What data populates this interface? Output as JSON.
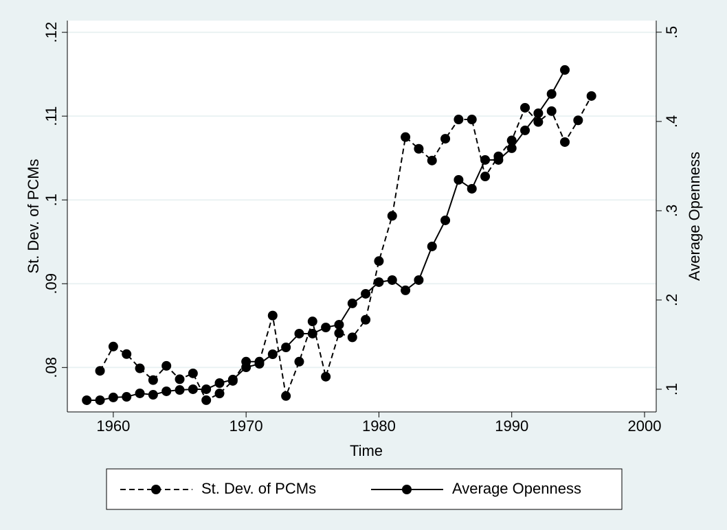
{
  "chart_data": {
    "type": "line",
    "x": [
      1958,
      1959,
      1960,
      1961,
      1962,
      1963,
      1964,
      1965,
      1966,
      1967,
      1968,
      1969,
      1970,
      1971,
      1972,
      1973,
      1974,
      1975,
      1976,
      1977,
      1978,
      1979,
      1980,
      1981,
      1982,
      1983,
      1984,
      1985,
      1986,
      1987,
      1988,
      1989,
      1990,
      1991,
      1992,
      1993,
      1994,
      1995,
      1996
    ],
    "series": [
      {
        "name": "St. Dev. of PCMs",
        "color": "#000000",
        "dash": true,
        "values": [
          null,
          0.0796,
          0.0825,
          0.0816,
          0.0799,
          0.0785,
          0.0802,
          0.0786,
          0.0793,
          0.0761,
          0.0769,
          0.0784,
          0.0807,
          0.0807,
          0.0862,
          0.0766,
          0.0807,
          0.0855,
          0.0789,
          0.0841,
          0.0836,
          0.0857,
          0.0927,
          0.0981,
          0.1075,
          0.1061,
          0.1047,
          0.1073,
          0.1096,
          0.1096,
          0.1028,
          0.1052,
          0.1071,
          0.111,
          0.1093,
          0.1106,
          0.1069,
          0.1095,
          0.1124
        ]
      },
      {
        "name": "Average Openness",
        "color": "#000000",
        "dash": false,
        "axis": "y2",
        "values": [
          0.0877,
          0.0877,
          0.0908,
          0.0915,
          0.0954,
          0.0938,
          0.0977,
          0.0992,
          0.1,
          0.1,
          0.1069,
          0.1108,
          0.1246,
          0.1285,
          0.1392,
          0.1469,
          0.1623,
          0.1623,
          0.1692,
          0.1723,
          0.1962,
          0.2069,
          0.22,
          0.2223,
          0.2108,
          0.2223,
          0.26,
          0.2892,
          0.3346,
          0.3246,
          0.3569,
          0.3569,
          0.37,
          0.39,
          0.4092,
          0.4308,
          0.4577,
          null,
          null
        ]
      }
    ],
    "xlabel": "Time",
    "ylabel": "St. Dev. of PCMs",
    "y2label": "Average Openness",
    "xlim": [
      1956.54,
      2000.88
    ],
    "xticks": [
      1960,
      1970,
      1980,
      1990,
      2000
    ],
    "ylim": [
      0.0747,
      0.1214
    ],
    "yticks": [
      {
        "value": 0.08,
        "label": ".08"
      },
      {
        "value": 0.09,
        "label": ".09"
      },
      {
        "value": 0.1,
        "label": ".1"
      },
      {
        "value": 0.11,
        "label": ".11"
      },
      {
        "value": 0.12,
        "label": ".12"
      }
    ],
    "y2lim": [
      0.0746,
      0.513
    ],
    "y2ticks": [
      {
        "value": 0.1,
        "label": ".1"
      },
      {
        "value": 0.2,
        "label": ".2"
      },
      {
        "value": 0.3,
        "label": ".3"
      },
      {
        "value": 0.4,
        "label": ".4"
      },
      {
        "value": 0.5,
        "label": ".5"
      }
    ],
    "grid": true
  }
}
